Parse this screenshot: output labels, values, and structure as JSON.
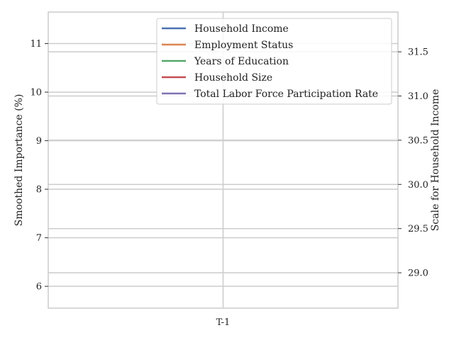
{
  "chart_data": {
    "type": "line",
    "title": "",
    "categories": [
      "T-1"
    ],
    "left_axis": {
      "label": "Smoothed Importance (%)",
      "ylim": [
        5.55,
        11.65
      ],
      "ticks": [
        6,
        7,
        8,
        9,
        10,
        11
      ]
    },
    "right_axis": {
      "label": "Scale for Household Income",
      "ylim": [
        28.6,
        31.95
      ],
      "ticks": [
        29.0,
        29.5,
        30.0,
        30.5,
        31.0,
        31.5
      ],
      "tick_labels": [
        "29.0",
        "29.5",
        "30.0",
        "30.5",
        "31.0",
        "31.5"
      ]
    },
    "grid": true,
    "legend_position": "top-right",
    "series": [
      {
        "name": "Household Income",
        "color": "#4c72b0",
        "values": [
          null
        ],
        "axis": "right"
      },
      {
        "name": "Employment Status",
        "color": "#dd8452",
        "values": [
          null
        ],
        "axis": "left"
      },
      {
        "name": "Years of Education",
        "color": "#55a868",
        "values": [
          null
        ],
        "axis": "left"
      },
      {
        "name": "Household Size",
        "color": "#c44e52",
        "values": [
          null
        ],
        "axis": "left"
      },
      {
        "name": "Total Labor Force Participation Rate",
        "color": "#8172b3",
        "values": [
          null
        ],
        "axis": "left"
      }
    ]
  }
}
